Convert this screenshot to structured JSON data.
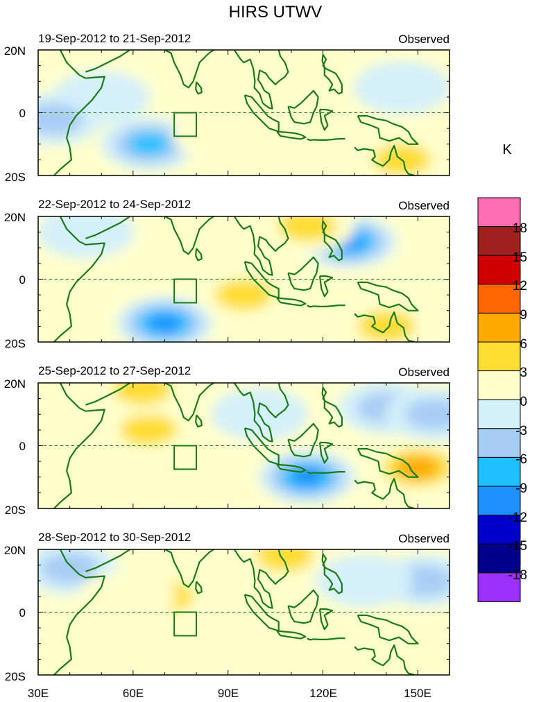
{
  "chart_data": {
    "type": "heatmap",
    "title": "HIRS UTWV",
    "units": "K",
    "x_ticks": [
      "30E",
      "60E",
      "90E",
      "120E",
      "150E"
    ],
    "x_range": [
      30,
      160
    ],
    "y_ticks": [
      "20N",
      "0",
      "20S"
    ],
    "y_range": [
      -20,
      20
    ],
    "colorbar": {
      "labels": [
        "18",
        "15",
        "12",
        "9",
        "6",
        "3",
        "0",
        "-3",
        "-6",
        "-9",
        "-12",
        "-15",
        "-18"
      ],
      "colors": [
        "#ff6eb4",
        "#a02020",
        "#d10000",
        "#ff6600",
        "#ffaa00",
        "#ffdd33",
        "#ffffcc",
        "#d4f0fa",
        "#a8cdf5",
        "#1ec0ff",
        "#1e90ff",
        "#0000cd",
        "#00008b",
        "#9b30ff"
      ]
    },
    "panels": [
      {
        "period": "19-Sep-2012 to 21-Sep-2012",
        "label": "Observed",
        "anomalies": [
          {
            "lon": 65,
            "lat": -10,
            "value": -10
          },
          {
            "lon": 68,
            "lat": 12,
            "value": 5
          },
          {
            "lon": 88,
            "lat": -7,
            "value": 4
          },
          {
            "lon": 145,
            "lat": -15,
            "value": 8
          },
          {
            "lon": 108,
            "lat": 14,
            "value": 5
          },
          {
            "lon": 50,
            "lat": 5,
            "value": -4
          },
          {
            "lon": 145,
            "lat": 8,
            "value": -3
          },
          {
            "lon": 35,
            "lat": -2,
            "value": -6
          }
        ]
      },
      {
        "period": "22-Sep-2012 to 24-Sep-2012",
        "label": "Observed",
        "anomalies": [
          {
            "lon": 70,
            "lat": -14,
            "value": -12
          },
          {
            "lon": 128,
            "lat": 12,
            "value": -12
          },
          {
            "lon": 95,
            "lat": -5,
            "value": 8
          },
          {
            "lon": 115,
            "lat": 17,
            "value": 7
          },
          {
            "lon": 140,
            "lat": -15,
            "value": 6
          },
          {
            "lon": 60,
            "lat": 10,
            "value": 3
          },
          {
            "lon": 45,
            "lat": 15,
            "value": -3
          }
        ]
      },
      {
        "period": "25-Sep-2012 to 27-Sep-2012",
        "label": "Observed",
        "anomalies": [
          {
            "lon": 115,
            "lat": -10,
            "value": -12
          },
          {
            "lon": 65,
            "lat": 5,
            "value": 6
          },
          {
            "lon": 63,
            "lat": 18,
            "value": 6
          },
          {
            "lon": 150,
            "lat": -7,
            "value": 9
          },
          {
            "lon": 140,
            "lat": 12,
            "value": -6
          },
          {
            "lon": 155,
            "lat": 10,
            "value": -6
          },
          {
            "lon": 100,
            "lat": 10,
            "value": -4
          },
          {
            "lon": 80,
            "lat": -5,
            "value": 3
          }
        ]
      },
      {
        "period": "28-Sep-2012 to 30-Sep-2012",
        "label": "Observed",
        "anomalies": [
          {
            "lon": 70,
            "lat": 5,
            "value": 7
          },
          {
            "lon": 108,
            "lat": 18,
            "value": 8
          },
          {
            "lon": 152,
            "lat": 10,
            "value": -7
          },
          {
            "lon": 40,
            "lat": 14,
            "value": -6
          },
          {
            "lon": 145,
            "lat": -10,
            "value": 4
          },
          {
            "lon": 58,
            "lat": 5,
            "value": 5
          },
          {
            "lon": 115,
            "lat": -10,
            "value": 3
          },
          {
            "lon": 133,
            "lat": 10,
            "value": -4
          }
        ]
      }
    ]
  }
}
